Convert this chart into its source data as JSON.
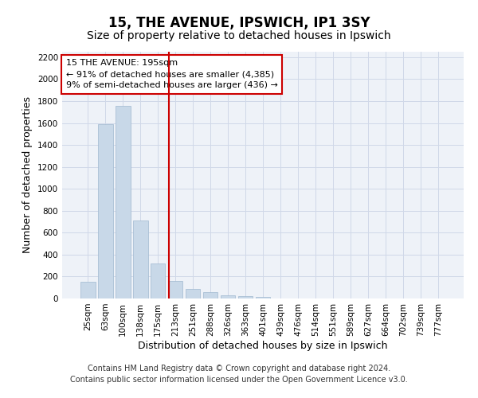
{
  "title_line1": "15, THE AVENUE, IPSWICH, IP1 3SY",
  "title_line2": "Size of property relative to detached houses in Ipswich",
  "xlabel": "Distribution of detached houses by size in Ipswich",
  "ylabel": "Number of detached properties",
  "categories": [
    "25sqm",
    "63sqm",
    "100sqm",
    "138sqm",
    "175sqm",
    "213sqm",
    "251sqm",
    "288sqm",
    "326sqm",
    "363sqm",
    "401sqm",
    "439sqm",
    "476sqm",
    "514sqm",
    "551sqm",
    "589sqm",
    "627sqm",
    "664sqm",
    "702sqm",
    "739sqm",
    "777sqm"
  ],
  "values": [
    155,
    1590,
    1755,
    710,
    320,
    160,
    90,
    55,
    30,
    20,
    15,
    0,
    0,
    0,
    0,
    0,
    0,
    0,
    0,
    0,
    0
  ],
  "bar_color": "#c8d8e8",
  "bar_edgecolor": "#a0b8d0",
  "vline_x": 4.65,
  "vline_color": "#cc0000",
  "annotation_text": "15 THE AVENUE: 195sqm\n← 91% of detached houses are smaller (4,385)\n9% of semi-detached houses are larger (436) →",
  "annotation_box_color": "#ffffff",
  "annotation_box_edgecolor": "#cc0000",
  "ylim": [
    0,
    2250
  ],
  "yticks": [
    0,
    200,
    400,
    600,
    800,
    1000,
    1200,
    1400,
    1600,
    1800,
    2000,
    2200
  ],
  "grid_color": "#d0d8e8",
  "bg_color": "#eef2f8",
  "footer_line1": "Contains HM Land Registry data © Crown copyright and database right 2024.",
  "footer_line2": "Contains public sector information licensed under the Open Government Licence v3.0.",
  "title_fontsize": 12,
  "subtitle_fontsize": 10,
  "axis_label_fontsize": 9,
  "tick_fontsize": 7.5,
  "footer_fontsize": 7,
  "annot_fontsize": 8
}
